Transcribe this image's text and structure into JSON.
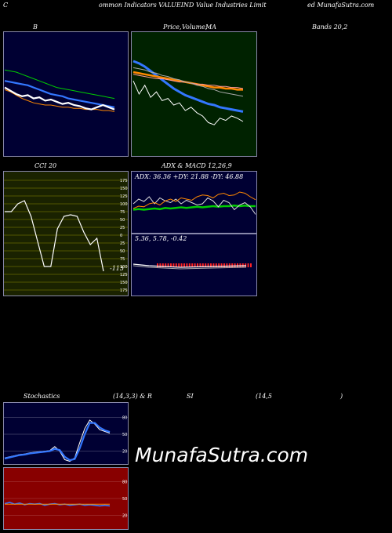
{
  "header": {
    "left": "C",
    "mid": "ommon  Indicators VALUEIND Value   Industries Limit",
    "right": "ed MunafaSutra.com"
  },
  "titles": {
    "b": "B",
    "price_a": "Price,",
    "price_b": "Volume,",
    "price_c": "MA",
    "bands": "Bands 20,2",
    "cci": "CCI 20",
    "adx": "ADX  & MACD 12,26,9",
    "stoch_a": "Stochastics",
    "stoch_b": "(14,3,3) & R",
    "stoch_c": "SI",
    "stoch_d": "(14,5",
    "stoch_e": ")"
  },
  "adx_text": "ADX: 36.36  +DY: 21.88  -DY: 46.88",
  "macd_text": "5.36,  5.78,  -0.42",
  "cci_value": "-115",
  "watermark": "MunafaSutra.com",
  "colors": {
    "navy": "#000033",
    "green_bg": "#002200",
    "olive_bg": "#1a2200",
    "dark_red": "#880000",
    "blue": "#3377ff",
    "green": "#00cc00",
    "orange": "#ff8800",
    "white": "#ffffff",
    "red": "#ff2222"
  },
  "chart_data": [
    {
      "type": "line",
      "panel": "bollinger",
      "title": "B",
      "series": [
        {
          "role": "upper-band",
          "color": "#00cc00",
          "values": [
            72,
            71,
            70,
            68,
            66,
            64,
            62,
            60,
            58,
            56,
            55,
            54,
            53,
            52,
            51,
            50,
            49,
            48,
            47,
            46
          ]
        },
        {
          "role": "middle-band",
          "color": "#3377ff",
          "values": [
            62,
            61,
            60,
            59,
            58,
            56,
            54,
            52,
            50,
            49,
            48,
            46,
            45,
            44,
            43,
            42,
            41,
            40,
            39,
            38
          ]
        },
        {
          "role": "lower-band",
          "color": "#ff8800",
          "values": [
            54,
            52,
            49,
            46,
            44,
            42,
            41,
            40,
            40,
            39,
            38,
            38,
            37,
            37,
            36,
            36,
            36,
            35,
            35,
            34
          ]
        },
        {
          "role": "price",
          "color": "#ffffff",
          "values": [
            56,
            53,
            50,
            48,
            49,
            46,
            47,
            44,
            45,
            43,
            41,
            42,
            40,
            39,
            37,
            36,
            38,
            40,
            38,
            36
          ]
        }
      ]
    },
    {
      "type": "line",
      "panel": "price-ma",
      "series": [
        {
          "role": "ma-blue",
          "color": "#3377ff",
          "values": [
            80,
            78,
            75,
            71,
            67,
            63,
            59,
            55,
            52,
            49,
            47,
            45,
            43,
            41,
            40,
            38,
            37,
            36,
            35,
            34
          ]
        },
        {
          "role": "ma-orange",
          "color": "#ff8800",
          "values": [
            70,
            69,
            68,
            67,
            66,
            65,
            64,
            63,
            62,
            61,
            60,
            59,
            58,
            57,
            56,
            56,
            55,
            55,
            54,
            54
          ]
        },
        {
          "role": "ma-salmon",
          "color": "#ff9999",
          "values": [
            68,
            67,
            66,
            65,
            64,
            64,
            63,
            62,
            61,
            61,
            60,
            59,
            59,
            58,
            58,
            57,
            57,
            56,
            56,
            55
          ]
        },
        {
          "role": "ma-grey",
          "color": "#aaaaaa",
          "values": [
            74,
            73,
            72,
            70,
            69,
            67,
            66,
            64,
            63,
            61,
            60,
            58,
            57,
            55,
            54,
            52,
            51,
            50,
            49,
            48
          ]
        },
        {
          "role": "price",
          "color": "#ffffff",
          "values": [
            62,
            50,
            58,
            47,
            52,
            44,
            46,
            40,
            42,
            35,
            38,
            33,
            30,
            24,
            22,
            28,
            26,
            30,
            28,
            25
          ]
        }
      ]
    },
    {
      "type": "line",
      "panel": "cci",
      "title": "CCI 20",
      "ylim": [
        -175,
        175
      ],
      "yticks": [
        175,
        150,
        125,
        100,
        75,
        50,
        25,
        0,
        -25,
        -50,
        -75,
        -100,
        -125,
        -150,
        -175
      ],
      "ytick_labels": [
        "175",
        "150",
        "125",
        "100",
        "75",
        "50",
        "25",
        "0",
        "25",
        "50",
        "75",
        "100",
        "125",
        "150",
        "175"
      ],
      "values": [
        75,
        75,
        100,
        110,
        60,
        -20,
        -100,
        -100,
        20,
        60,
        65,
        60,
        10,
        -30,
        -10,
        -115
      ]
    },
    {
      "type": "line",
      "panel": "adx",
      "series": [
        {
          "role": "adx",
          "color": "#00cc00",
          "values": [
            30,
            31,
            30,
            31,
            32,
            31,
            33,
            32,
            33,
            34,
            33,
            34,
            35,
            34,
            35,
            36,
            35,
            36,
            36,
            37,
            36,
            37,
            36,
            36
          ]
        },
        {
          "role": "plus-dy",
          "color": "#dddddd",
          "values": [
            40,
            48,
            44,
            52,
            40,
            50,
            45,
            42,
            48,
            40,
            46,
            42,
            38,
            40,
            50,
            45,
            35,
            46,
            42,
            30,
            38,
            42,
            35,
            22
          ]
        },
        {
          "role": "minus-dy",
          "color": "#ff8800",
          "values": [
            32,
            36,
            35,
            40,
            42,
            38,
            45,
            48,
            44,
            50,
            48,
            46,
            52,
            55,
            54,
            50,
            56,
            58,
            54,
            55,
            60,
            58,
            52,
            47
          ]
        }
      ]
    },
    {
      "type": "bar",
      "panel": "macd",
      "values": [
        5.36,
        5.78,
        -0.42
      ]
    },
    {
      "type": "line",
      "panel": "stochastics",
      "yticks": [
        80,
        50,
        20
      ],
      "ytick_labels": [
        "80",
        "50",
        "20"
      ],
      "series": [
        {
          "role": "k",
          "color": "#ffffff",
          "values": [
            8,
            10,
            12,
            14,
            15,
            17,
            18,
            19,
            20,
            21,
            28,
            20,
            5,
            2,
            8,
            35,
            60,
            75,
            68,
            58,
            55,
            52
          ]
        },
        {
          "role": "d",
          "color": "#3377ff",
          "values": [
            7,
            9,
            11,
            13,
            14,
            16,
            17,
            18,
            19,
            20,
            24,
            22,
            10,
            4,
            6,
            25,
            50,
            70,
            70,
            62,
            57,
            54
          ]
        }
      ]
    },
    {
      "type": "line",
      "panel": "rsi",
      "yticks": [
        80,
        50,
        20
      ],
      "ytick_labels": [
        "80",
        "50",
        "20"
      ],
      "series": [
        {
          "role": "rsi",
          "color": "#3377ff",
          "values": [
            41,
            43,
            40,
            42,
            39,
            41,
            40,
            41,
            38,
            40,
            41,
            39,
            40,
            38,
            39,
            40,
            38,
            39,
            38,
            37,
            38,
            37
          ]
        },
        {
          "role": "ref-50",
          "color": "#ff8800",
          "values": [
            40,
            40,
            40,
            40,
            40,
            40,
            40,
            40,
            40,
            40,
            40,
            40,
            40,
            40,
            40,
            40,
            40,
            40,
            40,
            40,
            40,
            40
          ]
        }
      ]
    }
  ]
}
